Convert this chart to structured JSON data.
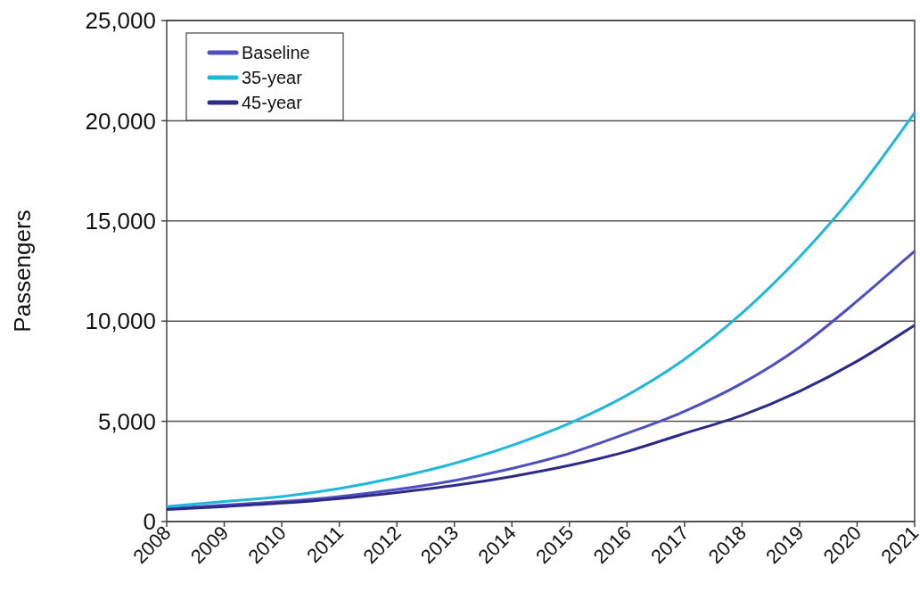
{
  "chart_data": {
    "type": "line",
    "ylabel": "Passengers",
    "x": [
      2008,
      2009,
      2010,
      2011,
      2012,
      2013,
      2014,
      2015,
      2016,
      2017,
      2018,
      2019,
      2020,
      2021
    ],
    "xlim": [
      2008,
      2021
    ],
    "xticks": [
      2008,
      2009,
      2010,
      2011,
      2012,
      2013,
      2014,
      2015,
      2016,
      2017,
      2018,
      2019,
      2020,
      2021
    ],
    "ylim": [
      0,
      25000
    ],
    "yticks": [
      {
        "value": 0,
        "label": "0"
      },
      {
        "value": 5000,
        "label": "5,000"
      },
      {
        "value": 10000,
        "label": "10,000"
      },
      {
        "value": 15000,
        "label": "15,000"
      },
      {
        "value": 20000,
        "label": "20,000"
      },
      {
        "value": 25000,
        "label": "25,000"
      }
    ],
    "grid": "y",
    "legend": "top left",
    "marker": "none",
    "line_style": "solid",
    "series": [
      {
        "name": "Baseline",
        "color": "#4f4fbf",
        "values": [
          650,
          820,
          1000,
          1250,
          1600,
          2050,
          2650,
          3400,
          4400,
          5500,
          6900,
          8700,
          11000,
          13500
        ]
      },
      {
        "name": "35-year",
        "color": "#1fb8d8",
        "values": [
          750,
          1000,
          1250,
          1650,
          2200,
          2900,
          3800,
          4900,
          6300,
          8100,
          10400,
          13200,
          16500,
          20400
        ]
      },
      {
        "name": "45-year",
        "color": "#2e2a8a",
        "values": [
          600,
          750,
          920,
          1150,
          1450,
          1800,
          2250,
          2800,
          3500,
          4400,
          5300,
          6500,
          8000,
          9800
        ]
      }
    ]
  }
}
